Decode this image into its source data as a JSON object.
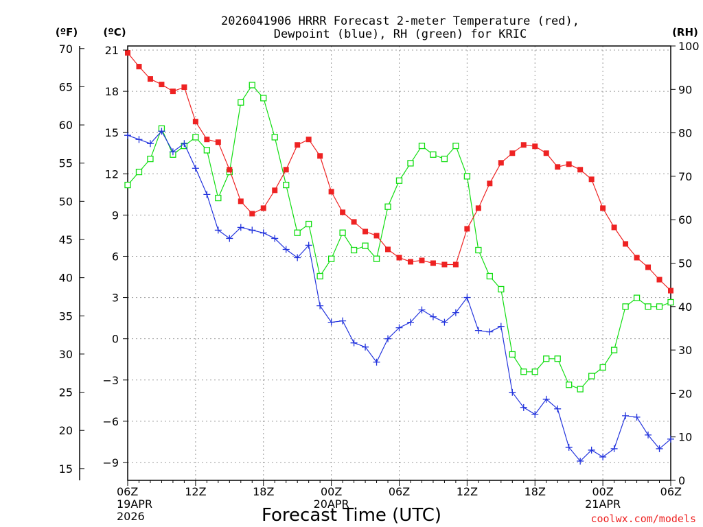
{
  "chart_data": {
    "type": "line",
    "title_line1": "2026041906 HRRR Forecast 2-meter Temperature (red),",
    "title_line2": "Dewpoint (blue), RH (green) for KRIC",
    "xlabel": "Forecast Time (UTC)",
    "left_unit_f": "(ºF)",
    "left_unit_c": "(ºC)",
    "right_unit": "(RH)",
    "credit": "coolwx.com/models",
    "colors": {
      "temperature": "#ee2222",
      "dewpoint": "#2233dd",
      "rh": "#11dd11"
    },
    "x_hours": [
      0,
      1,
      2,
      3,
      4,
      5,
      6,
      7,
      8,
      9,
      10,
      11,
      12,
      13,
      14,
      15,
      16,
      17,
      18,
      19,
      20,
      21,
      22,
      23,
      24,
      25,
      26,
      27,
      28,
      29,
      30,
      31,
      32,
      33,
      34,
      35,
      36,
      37,
      38,
      39,
      40,
      41,
      42,
      43,
      44,
      45,
      46,
      47,
      48
    ],
    "x_tick_labels": [
      {
        "hour": 0,
        "lines": [
          "06Z",
          "19APR",
          "2026"
        ]
      },
      {
        "hour": 6,
        "lines": [
          "12Z"
        ]
      },
      {
        "hour": 12,
        "lines": [
          "18Z"
        ]
      },
      {
        "hour": 18,
        "lines": [
          "00Z",
          "20APR"
        ]
      },
      {
        "hour": 24,
        "lines": [
          "06Z"
        ]
      },
      {
        "hour": 30,
        "lines": [
          "12Z"
        ]
      },
      {
        "hour": 36,
        "lines": [
          "18Z"
        ]
      },
      {
        "hour": 42,
        "lines": [
          "00Z",
          "21APR"
        ]
      },
      {
        "hour": 48,
        "lines": [
          "06Z"
        ]
      }
    ],
    "celsius_axis": {
      "ylim": [
        -10.3,
        21.3
      ],
      "ticks": [
        21,
        18,
        15,
        12,
        9,
        6,
        3,
        0,
        -3,
        -6,
        -9
      ]
    },
    "fahrenheit_axis": {
      "ticks": [
        70,
        65,
        60,
        55,
        50,
        45,
        40,
        35,
        30,
        25,
        20,
        15
      ]
    },
    "rh_axis": {
      "ylim": [
        0,
        100
      ],
      "ticks": [
        100,
        90,
        80,
        70,
        60,
        50,
        40,
        30,
        20,
        10,
        0
      ]
    },
    "series": [
      {
        "name": "Temperature",
        "units": "C",
        "marker": "filled-square",
        "values": [
          20.8,
          19.8,
          18.9,
          18.5,
          18.0,
          18.3,
          15.8,
          14.5,
          14.3,
          12.3,
          10.0,
          9.1,
          9.5,
          10.8,
          12.3,
          14.1,
          14.5,
          13.3,
          10.7,
          9.2,
          8.5,
          7.8,
          7.5,
          6.5,
          5.9,
          5.6,
          5.7,
          5.5,
          5.4,
          5.4,
          8.0,
          9.5,
          11.3,
          12.8,
          13.5,
          14.1,
          14.0,
          13.5,
          12.5,
          12.7,
          12.3,
          11.6,
          9.5,
          8.1,
          6.9,
          5.9,
          5.2,
          4.3,
          3.5
        ]
      },
      {
        "name": "Dewpoint",
        "units": "C",
        "marker": "plus",
        "values": [
          14.8,
          14.5,
          14.2,
          15.1,
          13.6,
          14.2,
          12.4,
          10.5,
          7.9,
          7.3,
          8.1,
          7.9,
          7.7,
          7.3,
          6.5,
          5.9,
          6.8,
          2.4,
          1.2,
          1.3,
          -0.3,
          -0.6,
          -1.7,
          0.0,
          0.8,
          1.2,
          2.1,
          1.6,
          1.2,
          1.9,
          3.0,
          0.6,
          0.5,
          0.9,
          -3.9,
          -5.0,
          -5.5,
          -4.4,
          -5.1,
          -7.9,
          -8.9,
          -8.1,
          -8.6,
          -8.0,
          -5.6,
          -5.7,
          -7.0,
          -8.0,
          -7.3
        ]
      },
      {
        "name": "RH",
        "units": "%",
        "marker": "open-square",
        "values": [
          68,
          71,
          74,
          81,
          75,
          77,
          79,
          76,
          65,
          71,
          87,
          91,
          88,
          79,
          68,
          57,
          59,
          47,
          51,
          57,
          53,
          54,
          51,
          63,
          69,
          73,
          77,
          75,
          74,
          77,
          70,
          53,
          47,
          44,
          29,
          25,
          25,
          28,
          28,
          22,
          21,
          24,
          26,
          30,
          40,
          42,
          40,
          40,
          41
        ]
      }
    ]
  }
}
